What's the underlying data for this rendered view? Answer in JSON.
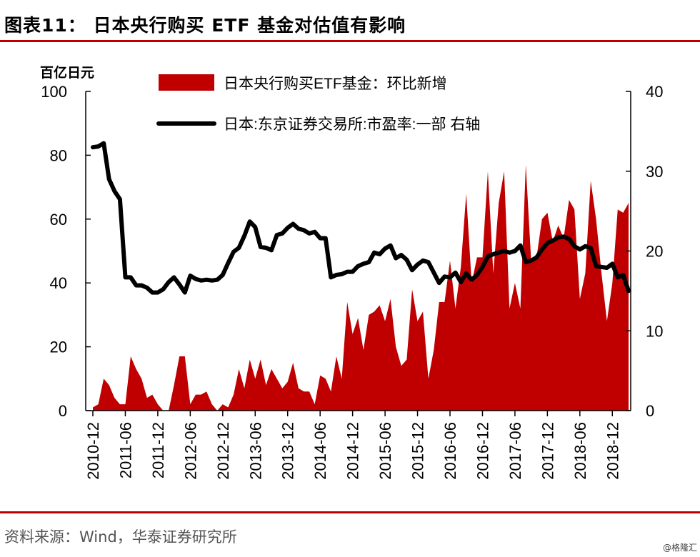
{
  "header": {
    "title": "图表11：  日本央行购买 ETF 基金对估值有影响"
  },
  "footer": {
    "source": "资料来源：Wind，华泰证券研究所",
    "watermark": "@格隆汇"
  },
  "colors": {
    "accent": "#c00000",
    "line": "#000000"
  },
  "chart_data": {
    "type": "area",
    "ylabel_left": "百亿日元",
    "ylim_left": [
      0,
      100
    ],
    "ylim_right": [
      0,
      40
    ],
    "yticks_left": [
      "0",
      "20",
      "40",
      "60",
      "80",
      "100"
    ],
    "yticks_right": [
      "0",
      "10",
      "20",
      "30",
      "40"
    ],
    "xtick_labels": [
      "2010-12",
      "2011-06",
      "2011-12",
      "2012-06",
      "2012-12",
      "2013-06",
      "2013-12",
      "2014-06",
      "2014-12",
      "2015-06",
      "2015-12",
      "2016-06",
      "2016-12",
      "2017-06",
      "2017-12",
      "2018-06",
      "2018-12"
    ],
    "legend_position": "top",
    "grid": false,
    "series": [
      {
        "name": "日本央行购买ETF基金：环比新增",
        "axis": "left",
        "type": "area",
        "color": "#c00000",
        "values": [
          1,
          2,
          10,
          8,
          4,
          2,
          2,
          17,
          13,
          10,
          4,
          5,
          2,
          0,
          0,
          8,
          17,
          17,
          2,
          5,
          5,
          6,
          2,
          0,
          2,
          1,
          5,
          13,
          7,
          16,
          10,
          16,
          8,
          13,
          10,
          7,
          9,
          15,
          7,
          6,
          6,
          2,
          11,
          10,
          6,
          17,
          10,
          34,
          24,
          29,
          19,
          30,
          31,
          33,
          28,
          35,
          20,
          14,
          16,
          38,
          28,
          31,
          10,
          19,
          34,
          34,
          47,
          32,
          45,
          68,
          40,
          48,
          48,
          75,
          43,
          65,
          75,
          32,
          40,
          32,
          77,
          47,
          48,
          60,
          62,
          53,
          58,
          54,
          66,
          63,
          35,
          43,
          72,
          60,
          43,
          28,
          40,
          63,
          62,
          65
        ]
      },
      {
        "name": "日本:东京证券交易所:市盈率:一部 右轴",
        "axis": "right",
        "type": "line",
        "color": "#000000",
        "values": [
          33,
          33.1,
          33.5,
          29,
          27.5,
          26.5,
          16.7,
          16.7,
          15.7,
          15.7,
          15.4,
          14.8,
          14.8,
          15.2,
          16.1,
          16.7,
          15.8,
          14.8,
          16.9,
          16.5,
          16.3,
          16.4,
          16.3,
          16.4,
          17,
          18.5,
          19.9,
          20.4,
          21.9,
          23.7,
          23,
          20.5,
          20.4,
          20.1,
          22,
          22.2,
          22.9,
          23.4,
          22.8,
          22.6,
          22.2,
          22.4,
          21.6,
          21.6,
          16.7,
          17,
          17.1,
          17.4,
          17.4,
          18.1,
          18.4,
          18.6,
          19.8,
          19.6,
          20.3,
          20.7,
          19.1,
          19.5,
          18.9,
          17.6,
          18.3,
          18.8,
          18.6,
          17.3,
          16,
          16.8,
          16.7,
          17.3,
          16.1,
          17.2,
          16.4,
          17,
          18,
          19.3,
          19.6,
          19.8,
          20,
          19.8,
          20,
          20.7,
          18.6,
          18.8,
          19.2,
          20.2,
          21,
          21.3,
          21.7,
          21.8,
          21.5,
          20.6,
          20.2,
          20.6,
          20.4,
          18.1,
          18,
          17.9,
          18.4,
          16.7,
          17,
          15
        ]
      }
    ]
  }
}
